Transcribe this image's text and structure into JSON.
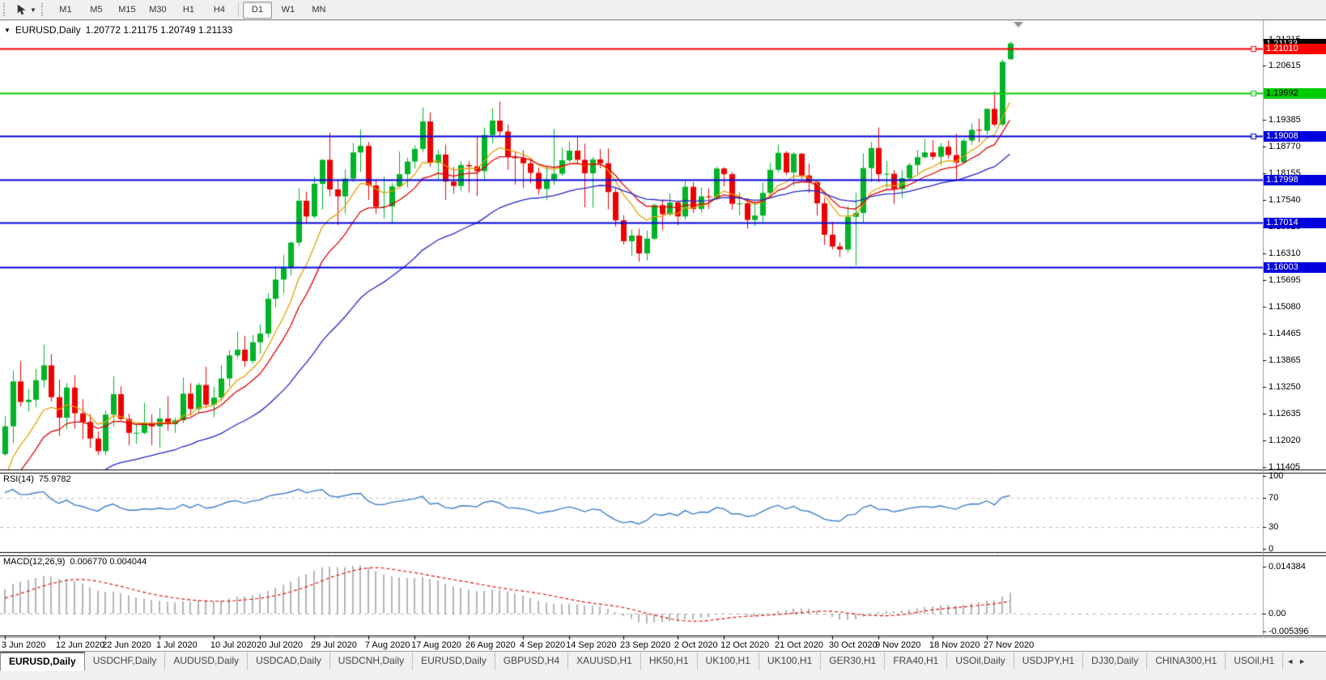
{
  "toolbar": {
    "tool_icon": "cursor-tool",
    "timeframes": [
      "M1",
      "M5",
      "M15",
      "M30",
      "H1",
      "H4",
      "D1",
      "W1",
      "MN"
    ],
    "active_timeframe": "D1"
  },
  "chart": {
    "title_symbol": "EURUSD,Daily",
    "ohlc": "1.20772 1.21175 1.20749 1.21133",
    "rsi_label": "RSI(14)",
    "rsi_value": "75.9782",
    "macd_label": "MACD(12,26,9)",
    "macd_values": "0.006770 0.004044"
  },
  "chart_data": {
    "type": "candlestick",
    "symbol": "EURUSD",
    "timeframe": "Daily",
    "colors": {
      "up": "#00b327",
      "down": "#ee0000",
      "ma_fast": "#e2a000",
      "ma_mid": "#dd0000",
      "ma_slow": "#2424c8",
      "rsi_line": "#3d7ec9",
      "macd_bar": "#b4b4b4",
      "macd_signal": "#dd0000",
      "level_red": "#ff0000",
      "level_green": "#00ca00",
      "level_blue": "#0000dd",
      "current_badge": "#000000"
    },
    "price_axis_ticks": [
      "1.21215",
      "1.20615",
      "1.19385",
      "1.18770",
      "1.18155",
      "1.17540",
      "1.16925",
      "1.16310",
      "1.15695",
      "1.15080",
      "1.14465",
      "1.13865",
      "1.13250",
      "1.12635",
      "1.12020",
      "1.11405"
    ],
    "levels": [
      {
        "price": 1.2101,
        "label": "1.21010",
        "color": "#ff0000",
        "text": "#ffffff",
        "width": 2,
        "end_marker": true
      },
      {
        "price": 1.19992,
        "label": "1.19992",
        "color": "#00ca00",
        "text": "#000000",
        "width": 2,
        "end_marker": true
      },
      {
        "price": 1.19008,
        "label": "1.19008",
        "color": "#0000dd",
        "text": "#ffffff",
        "width": 2,
        "end_marker": true
      },
      {
        "price": 1.17998,
        "label": "1.17998",
        "color": "#0000dd",
        "text": "#ffffff",
        "width": 2,
        "end_marker": false
      },
      {
        "price": 1.17014,
        "label": "1.17014",
        "color": "#0000dd",
        "text": "#ffffff",
        "width": 2,
        "end_marker": false
      },
      {
        "price": 1.16003,
        "label": "1.16003",
        "color": "#0000dd",
        "text": "#ffffff",
        "width": 2,
        "end_marker": false
      }
    ],
    "current_price": {
      "value": 1.21133,
      "label": "1.21133"
    },
    "moving_averages": [
      {
        "period": 8,
        "color": "#e2a000"
      },
      {
        "period": 13,
        "color": "#dd0000"
      },
      {
        "period": 34,
        "color": "#2424c8"
      }
    ],
    "rsi": {
      "period": 14,
      "dashed_levels": [
        70,
        30
      ],
      "axis": [
        [
          "100",
          100
        ],
        [
          "70",
          70
        ],
        [
          "30",
          30
        ],
        [
          "0",
          0
        ]
      ]
    },
    "macd": {
      "fast": 12,
      "slow": 26,
      "signal": 9,
      "axis": [
        [
          "0.014384",
          0.014384
        ],
        [
          "0.00",
          0
        ],
        [
          "-0.005396",
          -0.005396
        ]
      ]
    },
    "date_labels": [
      [
        "3 Jun 2020",
        0
      ],
      [
        "12 Jun 2020",
        7
      ],
      [
        "22 Jun 2020",
        13
      ],
      [
        "1 Jul 2020",
        20
      ],
      [
        "10 Jul 2020",
        27
      ],
      [
        "20 Jul 2020",
        33
      ],
      [
        "29 Jul 2020",
        40
      ],
      [
        "7 Aug 2020",
        47
      ],
      [
        "17 Aug 2020",
        53
      ],
      [
        "26 Aug 2020",
        60
      ],
      [
        "4 Sep 2020",
        67
      ],
      [
        "14 Sep 2020",
        73
      ],
      [
        "23 Sep 2020",
        80
      ],
      [
        "2 Oct 2020",
        87
      ],
      [
        "12 Oct 2020",
        93
      ],
      [
        "21 Oct 2020",
        100
      ],
      [
        "30 Oct 2020",
        107
      ],
      [
        "9 Nov 2020",
        113
      ],
      [
        "18 Nov 2020",
        120
      ],
      [
        "27 Nov 2020",
        127
      ]
    ],
    "pre_closes": [
      1.0867,
      1.088,
      1.091,
      1.0871,
      1.0857,
      1.0843,
      1.082,
      1.08,
      1.0822,
      1.0839,
      1.0866,
      1.0899,
      1.092,
      1.0896,
      1.0815,
      1.0802,
      1.0784,
      1.081,
      1.0795,
      1.0825,
      1.0871,
      1.092,
      1.0901,
      1.0886,
      1.0924,
      1.098,
      1.0963,
      1.0922,
      1.0898,
      1.095,
      1.0983,
      1.1014,
      1.099,
      1.0966,
      1.0998,
      1.1035,
      1.1078,
      1.1101,
      1.1134,
      1.117
    ],
    "candles": [
      [
        1.117,
        1.1257,
        1.1166,
        1.1234
      ],
      [
        1.1234,
        1.1362,
        1.1195,
        1.1337
      ],
      [
        1.1337,
        1.1384,
        1.1279,
        1.129
      ],
      [
        1.129,
        1.132,
        1.1268,
        1.1295
      ],
      [
        1.1295,
        1.1366,
        1.1278,
        1.134
      ],
      [
        1.134,
        1.1422,
        1.1323,
        1.1374
      ],
      [
        1.1374,
        1.14,
        1.1291,
        1.1301
      ],
      [
        1.1301,
        1.1342,
        1.1212,
        1.1254
      ],
      [
        1.1254,
        1.1333,
        1.1227,
        1.1323
      ],
      [
        1.1323,
        1.1352,
        1.1228,
        1.1264
      ],
      [
        1.1264,
        1.1296,
        1.1204,
        1.1244
      ],
      [
        1.1244,
        1.1262,
        1.1185,
        1.1206
      ],
      [
        1.1206,
        1.1223,
        1.1168,
        1.1177
      ],
      [
        1.1177,
        1.1271,
        1.1168,
        1.1261
      ],
      [
        1.1261,
        1.1349,
        1.1233,
        1.1308
      ],
      [
        1.1308,
        1.1326,
        1.1248,
        1.1251
      ],
      [
        1.1251,
        1.1263,
        1.119,
        1.1219
      ],
      [
        1.1219,
        1.1239,
        1.1194,
        1.1219
      ],
      [
        1.1219,
        1.1288,
        1.1216,
        1.1242
      ],
      [
        1.1242,
        1.1262,
        1.1191,
        1.1234
      ],
      [
        1.1234,
        1.1276,
        1.1185,
        1.1252
      ],
      [
        1.1252,
        1.1303,
        1.1224,
        1.1239
      ],
      [
        1.1239,
        1.1254,
        1.1219,
        1.1248
      ],
      [
        1.1248,
        1.1346,
        1.1241,
        1.1309
      ],
      [
        1.1309,
        1.1333,
        1.1259,
        1.1274
      ],
      [
        1.1274,
        1.1334,
        1.1266,
        1.1329
      ],
      [
        1.1329,
        1.1371,
        1.1276,
        1.1284
      ],
      [
        1.1284,
        1.1325,
        1.1255,
        1.13
      ],
      [
        1.13,
        1.1375,
        1.1292,
        1.1344
      ],
      [
        1.1344,
        1.1409,
        1.1325,
        1.1397
      ],
      [
        1.1397,
        1.1452,
        1.139,
        1.141
      ],
      [
        1.141,
        1.1442,
        1.137,
        1.1384
      ],
      [
        1.1384,
        1.1444,
        1.1378,
        1.1427
      ],
      [
        1.1427,
        1.1468,
        1.1401,
        1.1447
      ],
      [
        1.1447,
        1.154,
        1.1438,
        1.1527
      ],
      [
        1.1527,
        1.1601,
        1.1507,
        1.1571
      ],
      [
        1.1571,
        1.1628,
        1.1539,
        1.1598
      ],
      [
        1.1598,
        1.1658,
        1.158,
        1.1656
      ],
      [
        1.1656,
        1.1781,
        1.1648,
        1.1752
      ],
      [
        1.1752,
        1.1773,
        1.17,
        1.1716
      ],
      [
        1.1716,
        1.1807,
        1.1712,
        1.1791
      ],
      [
        1.1791,
        1.1847,
        1.1732,
        1.1846
      ],
      [
        1.1846,
        1.1909,
        1.1762,
        1.1778
      ],
      [
        1.1778,
        1.1798,
        1.1696,
        1.1762
      ],
      [
        1.1762,
        1.1824,
        1.1723,
        1.1803
      ],
      [
        1.1803,
        1.1885,
        1.1795,
        1.1863
      ],
      [
        1.1863,
        1.1916,
        1.1818,
        1.1878
      ],
      [
        1.1878,
        1.1887,
        1.1754,
        1.1787
      ],
      [
        1.1787,
        1.1798,
        1.1722,
        1.1738
      ],
      [
        1.1738,
        1.1808,
        1.1711,
        1.1739
      ],
      [
        1.1739,
        1.1793,
        1.1701,
        1.1785
      ],
      [
        1.1785,
        1.1865,
        1.1782,
        1.1813
      ],
      [
        1.1813,
        1.1851,
        1.1782,
        1.1842
      ],
      [
        1.1842,
        1.1879,
        1.1826,
        1.1871
      ],
      [
        1.1871,
        1.1966,
        1.1863,
        1.1934
      ],
      [
        1.1934,
        1.1954,
        1.183,
        1.1839
      ],
      [
        1.1839,
        1.1869,
        1.1801,
        1.1858
      ],
      [
        1.1858,
        1.1881,
        1.1754,
        1.1796
      ],
      [
        1.1796,
        1.183,
        1.1768,
        1.1786
      ],
      [
        1.1786,
        1.1843,
        1.1774,
        1.1834
      ],
      [
        1.1834,
        1.1843,
        1.1771,
        1.1831
      ],
      [
        1.1831,
        1.1899,
        1.1763,
        1.182
      ],
      [
        1.182,
        1.192,
        1.1801,
        1.1903
      ],
      [
        1.1903,
        1.1965,
        1.1883,
        1.1936
      ],
      [
        1.1936,
        1.198,
        1.19,
        1.1911
      ],
      [
        1.1911,
        1.1927,
        1.1823,
        1.1853
      ],
      [
        1.1853,
        1.1865,
        1.1789,
        1.185
      ],
      [
        1.185,
        1.1868,
        1.1781,
        1.1838
      ],
      [
        1.1838,
        1.185,
        1.1792,
        1.1816
      ],
      [
        1.1816,
        1.1828,
        1.1766,
        1.1779
      ],
      [
        1.1779,
        1.1833,
        1.1753,
        1.1801
      ],
      [
        1.1801,
        1.1917,
        1.1788,
        1.1814
      ],
      [
        1.1814,
        1.1874,
        1.1809,
        1.1845
      ],
      [
        1.1845,
        1.1888,
        1.184,
        1.1867
      ],
      [
        1.1867,
        1.1901,
        1.1838,
        1.1846
      ],
      [
        1.1846,
        1.1883,
        1.1737,
        1.1815
      ],
      [
        1.1815,
        1.1852,
        1.1736,
        1.1847
      ],
      [
        1.1847,
        1.1871,
        1.1827,
        1.1838
      ],
      [
        1.1838,
        1.1872,
        1.1732,
        1.1772
      ],
      [
        1.1772,
        1.178,
        1.1692,
        1.1707
      ],
      [
        1.1707,
        1.1719,
        1.1651,
        1.1659
      ],
      [
        1.1659,
        1.1686,
        1.1626,
        1.1672
      ],
      [
        1.1672,
        1.1688,
        1.1612,
        1.1631
      ],
      [
        1.1631,
        1.1683,
        1.1615,
        1.1665
      ],
      [
        1.1665,
        1.1745,
        1.1661,
        1.1742
      ],
      [
        1.1742,
        1.1755,
        1.1684,
        1.1721
      ],
      [
        1.1721,
        1.1769,
        1.1717,
        1.1748
      ],
      [
        1.1748,
        1.1752,
        1.1695,
        1.1716
      ],
      [
        1.1716,
        1.1798,
        1.1708,
        1.1784
      ],
      [
        1.1784,
        1.1795,
        1.1724,
        1.1733
      ],
      [
        1.1733,
        1.1782,
        1.1725,
        1.1762
      ],
      [
        1.1762,
        1.1781,
        1.1733,
        1.176
      ],
      [
        1.176,
        1.1831,
        1.1753,
        1.1826
      ],
      [
        1.1826,
        1.1829,
        1.1785,
        1.1813
      ],
      [
        1.1813,
        1.1818,
        1.1731,
        1.1745
      ],
      [
        1.1745,
        1.1772,
        1.1719,
        1.1746
      ],
      [
        1.1746,
        1.1758,
        1.1688,
        1.1708
      ],
      [
        1.1708,
        1.1746,
        1.1694,
        1.1718
      ],
      [
        1.1718,
        1.1794,
        1.1703,
        1.177
      ],
      [
        1.177,
        1.184,
        1.1761,
        1.1823
      ],
      [
        1.1823,
        1.1881,
        1.1817,
        1.1862
      ],
      [
        1.1862,
        1.1866,
        1.1811,
        1.1817
      ],
      [
        1.1817,
        1.1864,
        1.1786,
        1.186
      ],
      [
        1.186,
        1.1862,
        1.1803,
        1.181
      ],
      [
        1.181,
        1.1837,
        1.177,
        1.1795
      ],
      [
        1.1795,
        1.18,
        1.1718,
        1.1746
      ],
      [
        1.1746,
        1.1759,
        1.165,
        1.1674
      ],
      [
        1.1674,
        1.1704,
        1.164,
        1.1647
      ],
      [
        1.1647,
        1.1656,
        1.1623,
        1.164
      ],
      [
        1.164,
        1.174,
        1.1633,
        1.1715
      ],
      [
        1.1715,
        1.1771,
        1.1603,
        1.1724
      ],
      [
        1.1724,
        1.1861,
        1.1702,
        1.1827
      ],
      [
        1.1827,
        1.1887,
        1.1795,
        1.1873
      ],
      [
        1.1873,
        1.192,
        1.1795,
        1.1813
      ],
      [
        1.1813,
        1.1843,
        1.1781,
        1.1814
      ],
      [
        1.1814,
        1.1823,
        1.1745,
        1.1779
      ],
      [
        1.1779,
        1.1823,
        1.1758,
        1.1804
      ],
      [
        1.1804,
        1.1839,
        1.1799,
        1.1834
      ],
      [
        1.1834,
        1.1869,
        1.1814,
        1.1852
      ],
      [
        1.1852,
        1.1894,
        1.1849,
        1.1863
      ],
      [
        1.1863,
        1.1891,
        1.1846,
        1.1853
      ],
      [
        1.1853,
        1.1885,
        1.1833,
        1.1876
      ],
      [
        1.1876,
        1.189,
        1.1849,
        1.1857
      ],
      [
        1.1857,
        1.1906,
        1.18,
        1.184
      ],
      [
        1.184,
        1.1895,
        1.1836,
        1.189
      ],
      [
        1.189,
        1.193,
        1.188,
        1.1915
      ],
      [
        1.1915,
        1.1941,
        1.1886,
        1.1913
      ],
      [
        1.1913,
        1.1964,
        1.1904,
        1.1963
      ],
      [
        1.1963,
        1.2003,
        1.1923,
        1.1927
      ],
      [
        1.1927,
        1.2077,
        1.1923,
        1.2071
      ],
      [
        1.20772,
        1.21175,
        1.20749,
        1.21133
      ]
    ]
  },
  "tabs": {
    "items": [
      "EURUSD,Daily",
      "USDCHF,Daily",
      "AUDUSD,Daily",
      "USDCAD,Daily",
      "USDCNH,Daily",
      "EURUSD,Daily",
      "GBPUSD,H4",
      "XAUUSD,H1",
      "HK50,H1",
      "UK100,H1",
      "UK100,H1",
      "GER30,H1",
      "FRA40,H1",
      "USOil,Daily",
      "USDJPY,H1",
      "DJ30,Daily",
      "CHINA300,H1",
      "USOil,H1"
    ],
    "active_index": 0,
    "nav_left": "◄",
    "nav_right": "►"
  }
}
